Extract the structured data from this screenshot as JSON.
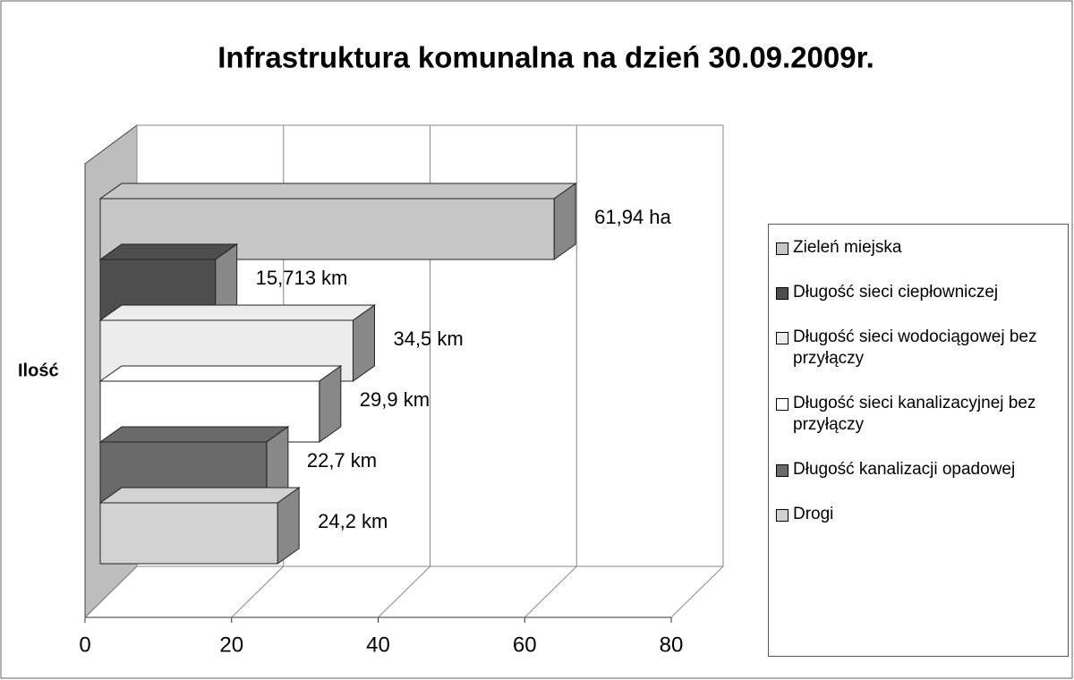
{
  "chart_data": {
    "type": "bar",
    "orientation": "horizontal",
    "title": "Infrastruktura komunalna na dzień 30.09.2009r.",
    "categories": [
      "Ilość"
    ],
    "series": [
      {
        "name": "Zieleń miejska",
        "color": "#c6c6c6",
        "values": [
          61.94
        ],
        "value_labels": [
          "61,94 ha"
        ]
      },
      {
        "name": "Długość sieci ciepłowniczej",
        "color": "#4e4e4e",
        "values": [
          15.713
        ],
        "value_labels": [
          "15,713 km"
        ]
      },
      {
        "name": "Długość sieci wodociągowej bez przyłączy",
        "color": "#ececec",
        "values": [
          34.5
        ],
        "value_labels": [
          "34,5 km"
        ]
      },
      {
        "name": "Długość sieci kanalizacyjnej bez przyłączy",
        "color": "#ffffff",
        "values": [
          29.9
        ],
        "value_labels": [
          "29,9 km"
        ]
      },
      {
        "name": "Długość kanalizacji opadowej",
        "color": "#6a6a6a",
        "values": [
          22.7
        ],
        "value_labels": [
          "22,7 km"
        ]
      },
      {
        "name": "Drogi",
        "color": "#d2d2d2",
        "values": [
          24.2
        ],
        "value_labels": [
          "24,2 km"
        ]
      }
    ],
    "xlim": [
      0,
      80
    ],
    "xticks": [
      0,
      20,
      40,
      60,
      80
    ],
    "grid": true,
    "legend": "right"
  }
}
